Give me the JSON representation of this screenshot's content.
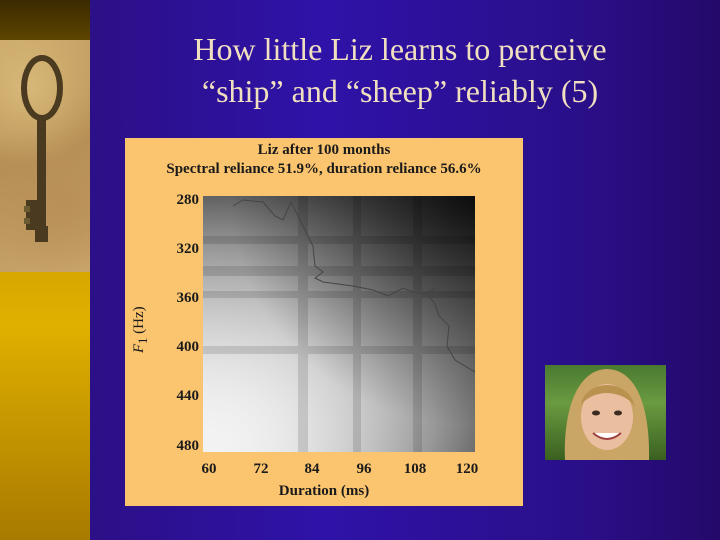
{
  "slide": {
    "title_line1": "How little Liz learns to perceive",
    "title_line2": "“ship” and “sheep” reliably (5)"
  },
  "colors": {
    "background": "#2f12a8",
    "title_text": "#f0e0c0",
    "figure_background": "#fbc56f"
  },
  "figure": {
    "title_line1": "Liz after 100 months",
    "title_line2": "Spectral reliance 51.9%, duration reliance 56.6%",
    "x_axis": {
      "label": "Duration (ms)",
      "ticks": [
        "60",
        "72",
        "84",
        "96",
        "108",
        "120"
      ]
    },
    "y_axis": {
      "label_var": "F",
      "label_sub": "1",
      "label_unit": " (Hz)",
      "ticks": [
        "280",
        "320",
        "360",
        "400",
        "440",
        "480"
      ]
    }
  },
  "images": {
    "left": "antique-key-photo",
    "right": "woman-portrait-photo"
  }
}
